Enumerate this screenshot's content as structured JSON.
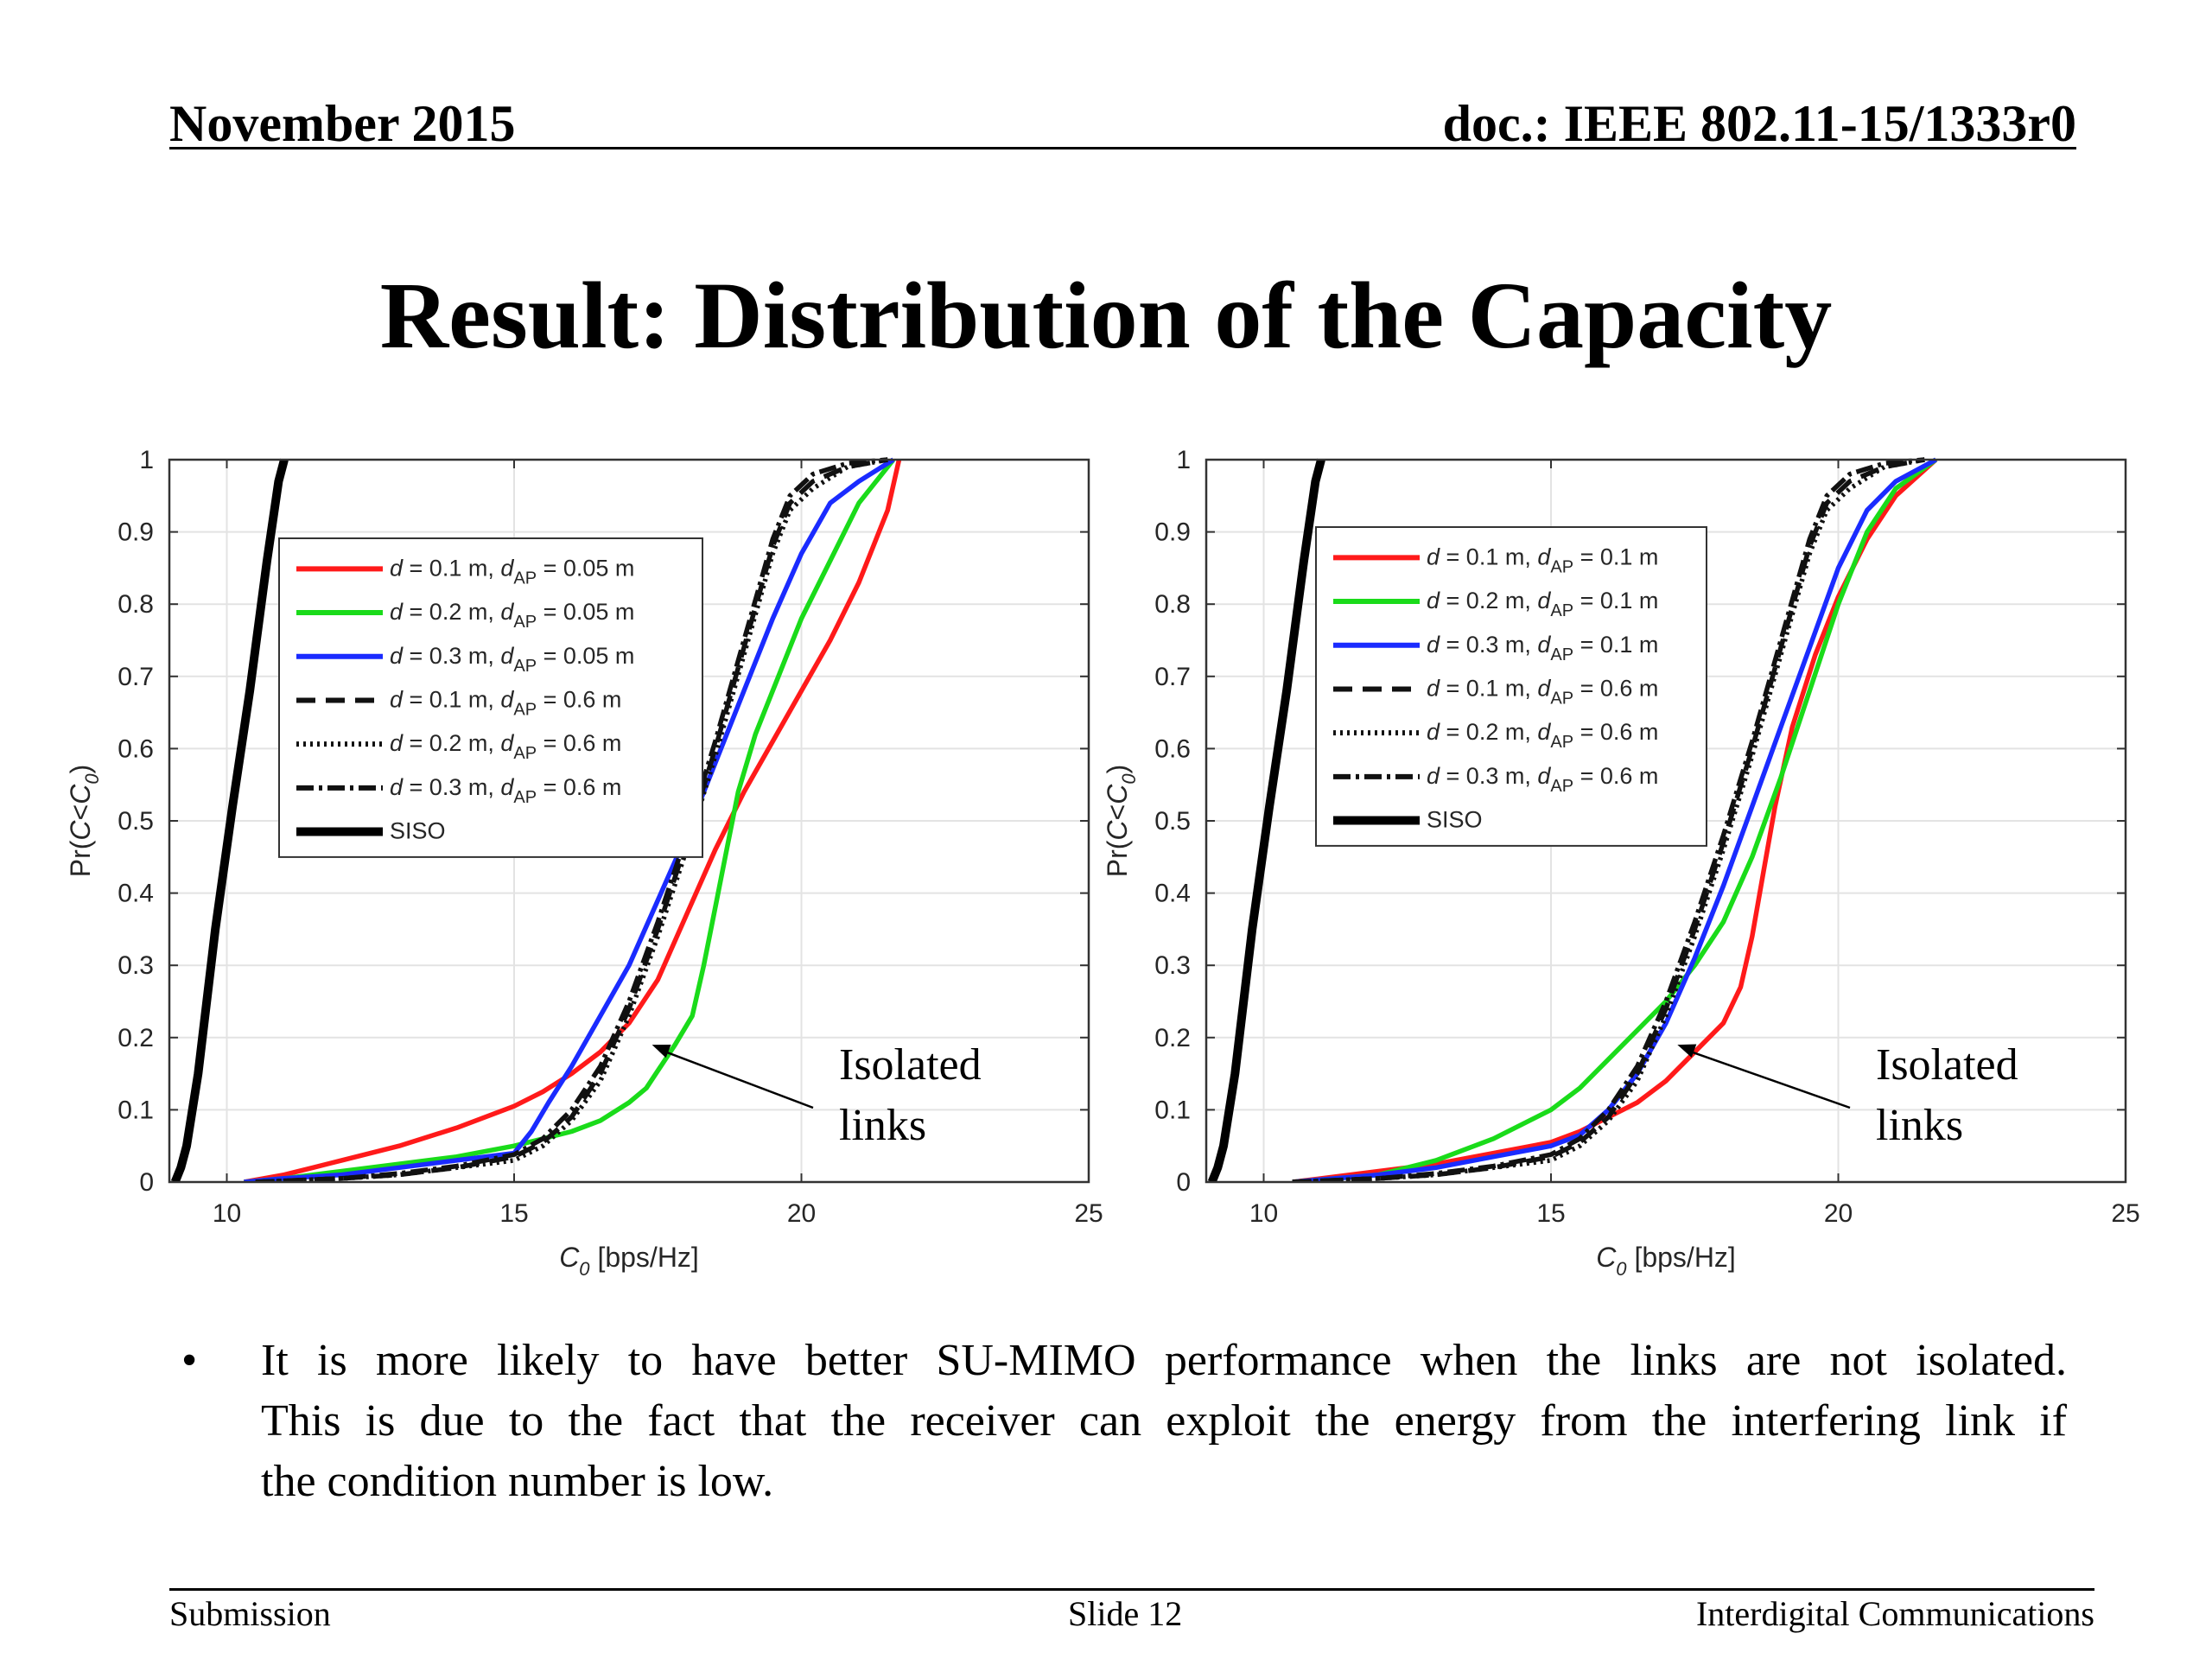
{
  "header": {
    "date": "November 2015",
    "doc": "doc.: IEEE 802.11-15/1333r0"
  },
  "title": "Result: Distribution of the Capacity",
  "chart_data": [
    {
      "type": "line",
      "xlabel_main": "C",
      "xlabel_sub": "0",
      "xlabel_rest": " [bps/Hz]",
      "ylabel": "Pr(C<C0)",
      "xlim": [
        9,
        25
      ],
      "ylim": [
        0,
        1
      ],
      "xticks": [
        10,
        15,
        20,
        25
      ],
      "yticks": [
        0,
        0.1,
        0.2,
        0.3,
        0.4,
        0.5,
        0.6,
        0.7,
        0.8,
        0.9,
        1
      ],
      "grid": true,
      "legend_position": "upper-left",
      "annotation": {
        "lines": [
          "Isolated",
          "links"
        ],
        "arrow_to": [
          17.4,
          0.19
        ]
      },
      "series": [
        {
          "legend": {
            "pre": "d = 0.1 m, d",
            "sub": "AP",
            "post": " = 0.05 m"
          },
          "color": "#ff1a1a",
          "dash": "solid",
          "x": [
            10.3,
            11,
            11.5,
            12,
            13,
            14,
            15,
            15.5,
            16,
            16.5,
            17,
            17.5,
            18,
            18.5,
            19,
            19.5,
            20,
            20.5,
            21,
            21.5,
            21.7
          ],
          "y": [
            0,
            0.01,
            0.02,
            0.03,
            0.05,
            0.075,
            0.105,
            0.125,
            0.15,
            0.18,
            0.22,
            0.28,
            0.37,
            0.46,
            0.54,
            0.61,
            0.68,
            0.75,
            0.83,
            0.93,
            1
          ]
        },
        {
          "legend": {
            "pre": "d = 0.2 m, d",
            "sub": "AP",
            "post": " = 0.05 m"
          },
          "color": "#1adb1a",
          "dash": "solid",
          "x": [
            10.3,
            11,
            12,
            13,
            14,
            15,
            16,
            16.5,
            17,
            17.3,
            17.8,
            18.1,
            18.3,
            18.5,
            18.7,
            18.9,
            19.2,
            19.6,
            20,
            20.5,
            21,
            21.6
          ],
          "y": [
            0,
            0.005,
            0.015,
            0.025,
            0.035,
            0.05,
            0.07,
            0.085,
            0.11,
            0.13,
            0.19,
            0.23,
            0.3,
            0.38,
            0.46,
            0.54,
            0.62,
            0.7,
            0.78,
            0.86,
            0.94,
            1
          ]
        },
        {
          "legend": {
            "pre": "d = 0.3 m, d",
            "sub": "AP",
            "post": " = 0.05 m"
          },
          "color": "#1a2bff",
          "dash": "solid",
          "x": [
            10.3,
            11,
            12,
            13,
            14,
            15,
            15.3,
            15.6,
            16,
            16.5,
            17,
            17.5,
            18,
            18.5,
            19,
            19.5,
            20,
            20.5,
            21,
            21.6
          ],
          "y": [
            0,
            0.005,
            0.01,
            0.02,
            0.03,
            0.04,
            0.07,
            0.11,
            0.16,
            0.23,
            0.3,
            0.39,
            0.48,
            0.58,
            0.68,
            0.78,
            0.87,
            0.94,
            0.97,
            1
          ]
        },
        {
          "legend": {
            "pre": "d = 0.1 m, d",
            "sub": "AP",
            "post": " = 0.6 m"
          },
          "color": "#111111",
          "dash": "22 12",
          "x": [
            10.5,
            12,
            13,
            14,
            15,
            15.5,
            16,
            16.5,
            17,
            17.5,
            18,
            18.5,
            19,
            19.5,
            19.8,
            20.2,
            20.8,
            21.5
          ],
          "y": [
            0,
            0.005,
            0.01,
            0.02,
            0.035,
            0.055,
            0.09,
            0.15,
            0.24,
            0.35,
            0.47,
            0.6,
            0.74,
            0.88,
            0.94,
            0.97,
            0.99,
            1
          ]
        },
        {
          "legend": {
            "pre": "d = 0.2 m, d",
            "sub": "AP",
            "post": " = 0.6 m"
          },
          "color": "#111111",
          "dash": "3 5",
          "x": [
            10.5,
            12,
            13,
            14,
            15,
            15.5,
            16,
            16.5,
            17,
            17.5,
            18,
            18.5,
            19,
            19.5,
            19.8,
            20.2,
            20.8,
            21.5
          ],
          "y": [
            0,
            0.005,
            0.01,
            0.02,
            0.03,
            0.05,
            0.085,
            0.14,
            0.23,
            0.34,
            0.46,
            0.59,
            0.73,
            0.87,
            0.93,
            0.96,
            0.99,
            1
          ]
        },
        {
          "legend": {
            "pre": "d = 0.3 m, d",
            "sub": "AP",
            "post": " = 0.6 m"
          },
          "color": "#111111",
          "dash": "20 6 4 6",
          "x": [
            10.5,
            12,
            13,
            14,
            15,
            15.5,
            16,
            16.5,
            17,
            17.5,
            18,
            18.5,
            19,
            19.5,
            19.8,
            20.2,
            20.8,
            21.5
          ],
          "y": [
            0,
            0.005,
            0.012,
            0.022,
            0.038,
            0.06,
            0.1,
            0.16,
            0.25,
            0.36,
            0.48,
            0.61,
            0.75,
            0.89,
            0.95,
            0.98,
            0.995,
            1
          ]
        },
        {
          "legend": {
            "pre": "SISO",
            "sub": "",
            "post": ""
          },
          "color": "#000000",
          "dash": "solid",
          "width": 10,
          "x": [
            9.1,
            9.2,
            9.3,
            9.5,
            9.8,
            10.1,
            10.4,
            10.7,
            10.9,
            11
          ],
          "y": [
            0,
            0.02,
            0.05,
            0.15,
            0.35,
            0.52,
            0.68,
            0.86,
            0.97,
            1
          ]
        }
      ]
    },
    {
      "type": "line",
      "xlabel_main": "C",
      "xlabel_sub": "0",
      "xlabel_rest": " [bps/Hz]",
      "ylabel": "Pr(C<C0)",
      "xlim": [
        9,
        25
      ],
      "ylim": [
        0,
        1
      ],
      "xticks": [
        10,
        15,
        20,
        25
      ],
      "yticks": [
        0,
        0.1,
        0.2,
        0.3,
        0.4,
        0.5,
        0.6,
        0.7,
        0.8,
        0.9,
        1
      ],
      "grid": true,
      "legend_position": "upper-left",
      "annotation": {
        "lines": [
          "Isolated",
          "links"
        ],
        "arrow_to": [
          17.2,
          0.19
        ]
      },
      "series": [
        {
          "legend": {
            "pre": "d = 0.1 m, d",
            "sub": "AP",
            "post": " = 0.1 m"
          },
          "color": "#ff1a1a",
          "dash": "solid",
          "x": [
            10.5,
            12,
            13,
            14,
            15,
            15.5,
            16,
            16.5,
            17,
            17.5,
            18,
            18.3,
            18.5,
            18.7,
            18.9,
            19.2,
            19.6,
            20,
            20.5,
            21,
            21.7
          ],
          "y": [
            0,
            0.015,
            0.025,
            0.04,
            0.055,
            0.07,
            0.09,
            0.11,
            0.14,
            0.18,
            0.22,
            0.27,
            0.34,
            0.43,
            0.52,
            0.63,
            0.73,
            0.81,
            0.89,
            0.95,
            1
          ]
        },
        {
          "legend": {
            "pre": "d = 0.2 m, d",
            "sub": "AP",
            "post": " = 0.1 m"
          },
          "color": "#1adb1a",
          "dash": "solid",
          "x": [
            10.5,
            12,
            13,
            14,
            15,
            15.5,
            16,
            16.5,
            17,
            17.5,
            18,
            18.5,
            19,
            19.5,
            20,
            20.5,
            21,
            21.7
          ],
          "y": [
            0,
            0.01,
            0.03,
            0.06,
            0.1,
            0.13,
            0.17,
            0.21,
            0.25,
            0.3,
            0.36,
            0.45,
            0.56,
            0.68,
            0.8,
            0.9,
            0.96,
            1
          ]
        },
        {
          "legend": {
            "pre": "d = 0.3 m, d",
            "sub": "AP",
            "post": " = 0.1 m"
          },
          "color": "#1a2bff",
          "dash": "solid",
          "x": [
            10.5,
            12,
            13,
            14,
            15,
            15.5,
            16,
            16.5,
            17,
            17.5,
            18,
            18.5,
            19,
            19.5,
            20,
            20.5,
            21,
            21.7
          ],
          "y": [
            0,
            0.01,
            0.02,
            0.035,
            0.05,
            0.065,
            0.1,
            0.15,
            0.22,
            0.31,
            0.41,
            0.52,
            0.63,
            0.74,
            0.85,
            0.93,
            0.97,
            1
          ]
        },
        {
          "legend": {
            "pre": "d = 0.1 m, d",
            "sub": "AP",
            "post": " = 0.6 m"
          },
          "color": "#111111",
          "dash": "22 12",
          "x": [
            10.5,
            12,
            13,
            14,
            15,
            15.5,
            16,
            16.5,
            17,
            17.5,
            18,
            18.5,
            19,
            19.5,
            19.8,
            20.2,
            20.8,
            21.5
          ],
          "y": [
            0,
            0.005,
            0.01,
            0.02,
            0.035,
            0.055,
            0.09,
            0.15,
            0.24,
            0.35,
            0.47,
            0.6,
            0.74,
            0.88,
            0.94,
            0.97,
            0.99,
            1
          ]
        },
        {
          "legend": {
            "pre": "d = 0.2 m, d",
            "sub": "AP",
            "post": " = 0.6 m"
          },
          "color": "#111111",
          "dash": "3 5",
          "x": [
            10.5,
            12,
            13,
            14,
            15,
            15.5,
            16,
            16.5,
            17,
            17.5,
            18,
            18.5,
            19,
            19.5,
            19.8,
            20.2,
            20.8,
            21.5
          ],
          "y": [
            0,
            0.005,
            0.01,
            0.02,
            0.03,
            0.05,
            0.085,
            0.14,
            0.23,
            0.34,
            0.46,
            0.59,
            0.73,
            0.87,
            0.93,
            0.96,
            0.99,
            1
          ]
        },
        {
          "legend": {
            "pre": "d = 0.3 m, d",
            "sub": "AP",
            "post": " = 0.6 m"
          },
          "color": "#111111",
          "dash": "20 6 4 6",
          "x": [
            10.5,
            12,
            13,
            14,
            15,
            15.5,
            16,
            16.5,
            17,
            17.5,
            18,
            18.5,
            19,
            19.5,
            19.8,
            20.2,
            20.8,
            21.5
          ],
          "y": [
            0,
            0.005,
            0.012,
            0.022,
            0.038,
            0.06,
            0.1,
            0.16,
            0.25,
            0.36,
            0.48,
            0.61,
            0.75,
            0.89,
            0.95,
            0.98,
            0.995,
            1
          ]
        },
        {
          "legend": {
            "pre": "SISO",
            "sub": "",
            "post": ""
          },
          "color": "#000000",
          "dash": "solid",
          "width": 10,
          "x": [
            9.1,
            9.2,
            9.3,
            9.5,
            9.8,
            10.1,
            10.4,
            10.7,
            10.9,
            11
          ],
          "y": [
            0,
            0.02,
            0.05,
            0.15,
            0.35,
            0.52,
            0.68,
            0.86,
            0.97,
            1
          ]
        }
      ]
    }
  ],
  "bullet": {
    "symbol": "•",
    "lines": [
      "It is more likely to have better SU-MIMO performance when the links are not isolated.",
      "This is due to the fact that the receiver can exploit the energy from the interfering link if",
      "the condition number is low."
    ]
  },
  "footer": {
    "left": "Submission",
    "center": "Slide 12",
    "right": "Interdigital Communications"
  }
}
